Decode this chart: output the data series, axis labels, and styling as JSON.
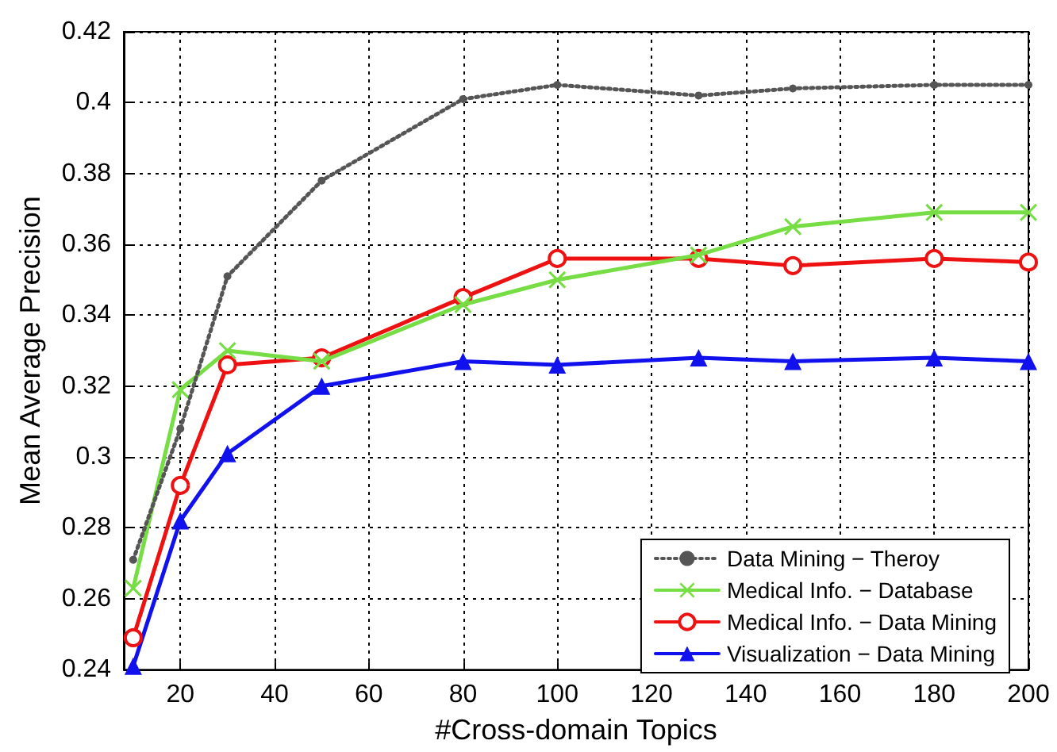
{
  "chart_data": {
    "type": "line",
    "xlabel": "#Cross-domain Topics",
    "ylabel": "Mean Average Precision",
    "x": [
      10,
      20,
      30,
      50,
      80,
      100,
      130,
      150,
      180,
      200
    ],
    "xlim": [
      8,
      200
    ],
    "xticks": [
      20,
      40,
      60,
      80,
      100,
      120,
      140,
      160,
      180,
      200
    ],
    "ylim": [
      0.24,
      0.42
    ],
    "yticks": [
      0.24,
      0.26,
      0.28,
      0.3,
      0.32,
      0.34,
      0.36,
      0.38,
      0.4,
      0.42
    ],
    "grid": true,
    "legend": "bottom right",
    "series": [
      {
        "name": "Data Mining − Theroy",
        "color": "#555555",
        "marker": "circle",
        "line_style": "dotted",
        "values": [
          0.271,
          0.308,
          0.351,
          0.378,
          0.401,
          0.405,
          0.402,
          0.404,
          0.405,
          0.405
        ]
      },
      {
        "name": "Medical Info. − Database",
        "color": "#77dd44",
        "marker": "cross",
        "line_style": "solid",
        "values": [
          0.263,
          0.319,
          0.33,
          0.327,
          0.343,
          0.35,
          0.357,
          0.365,
          0.369,
          0.369
        ]
      },
      {
        "name": "Medical Info. − Data Mining",
        "color": "#ee1111",
        "marker": "circle",
        "line_style": "solid",
        "values": [
          0.249,
          0.292,
          0.326,
          0.328,
          0.345,
          0.356,
          0.356,
          0.354,
          0.356,
          0.355
        ]
      },
      {
        "name": "Visualization − Data Mining",
        "color": "#1111ee",
        "marker": "triangle",
        "line_style": "solid",
        "values": [
          0.241,
          0.282,
          0.301,
          0.32,
          0.327,
          0.326,
          0.328,
          0.327,
          0.328,
          0.327
        ]
      }
    ]
  }
}
